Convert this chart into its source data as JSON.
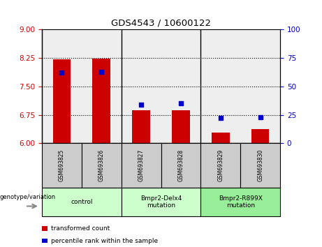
{
  "title": "GDS4543 / 10600122",
  "samples": [
    "GSM693825",
    "GSM693826",
    "GSM693827",
    "GSM693828",
    "GSM693829",
    "GSM693830"
  ],
  "transformed_counts": [
    8.22,
    8.23,
    6.88,
    6.88,
    6.28,
    6.38
  ],
  "percentile_ranks": [
    62,
    63,
    34,
    35,
    22,
    23
  ],
  "ylim_left": [
    6,
    9
  ],
  "ylim_right": [
    0,
    100
  ],
  "yticks_left": [
    6,
    6.75,
    7.5,
    8.25,
    9
  ],
  "yticks_right": [
    0,
    25,
    50,
    75,
    100
  ],
  "bar_color": "#cc0000",
  "dot_color": "#0000cc",
  "baseline": 6,
  "groups": [
    {
      "label": "control",
      "samples": [
        0,
        1
      ],
      "color": "#ccffcc"
    },
    {
      "label": "Bmpr2-Delx4\nmutation",
      "samples": [
        2,
        3
      ],
      "color": "#ccffcc"
    },
    {
      "label": "Bmpr2-R899X\nmutation",
      "samples": [
        4,
        5
      ],
      "color": "#99ee99"
    }
  ],
  "legend_items": [
    {
      "color": "#cc0000",
      "label": "transformed count"
    },
    {
      "color": "#0000cc",
      "label": "percentile rank within the sample"
    }
  ],
  "tick_color_left": "#cc0000",
  "tick_color_right": "#0000cc",
  "plot_bg": "#eeeeee",
  "sample_bg": "#cccccc"
}
